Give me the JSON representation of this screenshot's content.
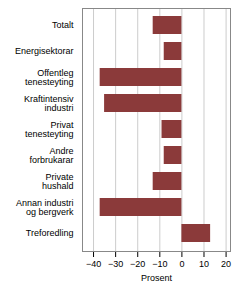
{
  "chart_data": {
    "type": "bar",
    "orientation": "horizontal",
    "categories": [
      "Totalt",
      "Energisektorar",
      "Offentleg\ntenesteyting",
      "Kraftintensiv\nindustri",
      "Privat\ntenesteyting",
      "Andre\nforbrukarar",
      "Private\nhushald",
      "Annan industri\nog bergverk",
      "Treforedling"
    ],
    "values": [
      -13,
      -8,
      -37,
      -35,
      -9,
      -8,
      -13,
      -37,
      13
    ],
    "color": "#8B3A3A",
    "xlabel": "Prosent",
    "xlim": [
      -45,
      22
    ],
    "xticks": [
      -40,
      -30,
      -20,
      -10,
      0,
      10,
      20
    ],
    "grid": true
  }
}
